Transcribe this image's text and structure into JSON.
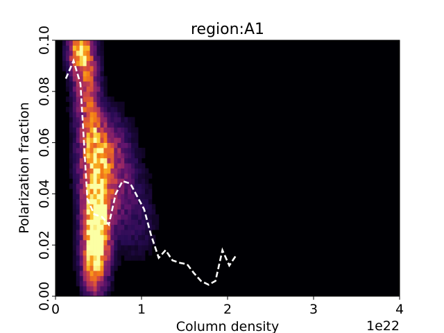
{
  "chart_data": {
    "type": "heatmap",
    "title": "region:A1",
    "xlabel": "Column density",
    "ylabel": "Polarization fraction",
    "x_offset_text": "1e22",
    "xlim": [
      0,
      4
    ],
    "ylim": [
      0,
      0.1
    ],
    "x_ticks": [
      0,
      1,
      2,
      3,
      4
    ],
    "x_tick_labels": [
      "0",
      "1",
      "2",
      "3",
      "4"
    ],
    "y_ticks": [
      0,
      0.02,
      0.04,
      0.06,
      0.08,
      0.1
    ],
    "y_tick_labels": [
      "0.00",
      "0.02",
      "0.04",
      "0.06",
      "0.08",
      "0.10"
    ],
    "grid": false,
    "colormap": "inferno",
    "background_color": "#000004",
    "histogram_hotspots": [
      {
        "x": 0.28,
        "y": 0.097,
        "dx": 0.09,
        "dy": 0.006,
        "weight": 0.7
      },
      {
        "x": 0.33,
        "y": 0.085,
        "dx": 0.1,
        "dy": 0.012,
        "weight": 0.45
      },
      {
        "x": 0.42,
        "y": 0.07,
        "dx": 0.08,
        "dy": 0.015,
        "weight": 0.35
      },
      {
        "x": 0.52,
        "y": 0.059,
        "dx": 0.16,
        "dy": 0.008,
        "weight": 0.4
      },
      {
        "x": 0.48,
        "y": 0.045,
        "dx": 0.14,
        "dy": 0.012,
        "weight": 0.5
      },
      {
        "x": 0.48,
        "y": 0.028,
        "dx": 0.1,
        "dy": 0.012,
        "weight": 1.0
      },
      {
        "x": 0.45,
        "y": 0.013,
        "dx": 0.1,
        "dy": 0.009,
        "weight": 0.6
      },
      {
        "x": 0.75,
        "y": 0.045,
        "dx": 0.15,
        "dy": 0.015,
        "weight": 0.25
      },
      {
        "x": 1.0,
        "y": 0.03,
        "dx": 0.15,
        "dy": 0.012,
        "weight": 0.12
      }
    ],
    "series": [
      {
        "style": "dashed",
        "color": "#ffffff",
        "x": [
          0.12,
          0.21,
          0.29,
          0.37,
          0.45,
          0.54,
          0.62,
          0.7,
          0.78,
          0.87,
          0.95,
          1.03,
          1.11,
          1.2,
          1.28,
          1.36,
          1.45,
          1.53,
          1.61,
          1.69,
          1.78,
          1.86,
          1.94,
          2.02,
          2.1
        ],
        "y": [
          0.085,
          0.092,
          0.083,
          0.038,
          0.032,
          0.031,
          0.028,
          0.04,
          0.045,
          0.044,
          0.039,
          0.034,
          0.024,
          0.015,
          0.018,
          0.014,
          0.013,
          0.0125,
          0.009,
          0.006,
          0.0045,
          0.006,
          0.018,
          0.012,
          0.016
        ]
      }
    ]
  }
}
